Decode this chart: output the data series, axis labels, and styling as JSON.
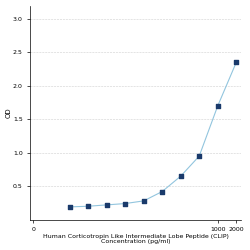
{
  "x_values": [
    3.9,
    7.8,
    15.6,
    31.2,
    62.5,
    125,
    250,
    500,
    1000,
    2000
  ],
  "y_values": [
    0.19,
    0.2,
    0.22,
    0.24,
    0.28,
    0.42,
    0.65,
    0.95,
    1.7,
    2.35
  ],
  "line_color": "#92c5de",
  "marker_color": "#1a3a6b",
  "marker_size": 8,
  "xlabel_line1": "Human Corticotropin Like Intermediate Lobe Peptide (CLIP)",
  "xlabel_line2": "Concentration (pg/ml)",
  "ylabel": "OD",
  "xlim_log": [
    0.9,
    2400
  ],
  "ylim": [
    0.0,
    3.2
  ],
  "yticks": [
    0.5,
    1.0,
    1.5,
    2.0,
    2.5,
    3.0
  ],
  "ytick_labels": [
    "0.5",
    "1.0",
    "1.5",
    "2.0",
    "2.5",
    "3.0"
  ],
  "xtick_positions": [
    1,
    1000,
    2000
  ],
  "xtick_labels": [
    "0",
    "1000",
    "2000"
  ],
  "grid_color": "#d0d0d0",
  "bg_color": "#ffffff",
  "font_size_label": 4.5,
  "font_size_tick": 4.5,
  "font_size_ylabel": 5
}
